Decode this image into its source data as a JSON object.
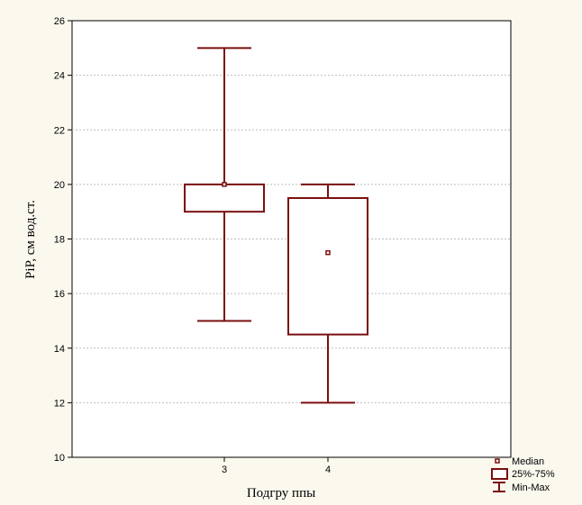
{
  "chart_data": {
    "type": "boxplot",
    "xlabel": "Подгру ппы",
    "ylabel": "PiP, см вод.ст.",
    "ylim": [
      10,
      26
    ],
    "yticks": [
      10,
      12,
      14,
      16,
      18,
      20,
      22,
      24,
      26
    ],
    "categories": [
      "3",
      "4"
    ],
    "boxes": [
      {
        "category": "3",
        "min": 15,
        "q1": 19,
        "median": 20,
        "q3": 20,
        "max": 25
      },
      {
        "category": "4",
        "min": 12,
        "q1": 14.5,
        "median": 17.5,
        "q3": 19.5,
        "max": 20
      }
    ],
    "grid": true,
    "legend_position": "bottom-right",
    "legend": [
      {
        "symbol": "median-square",
        "label": "Median"
      },
      {
        "symbol": "box",
        "label": "25%-75%"
      },
      {
        "symbol": "whisker",
        "label": "Min-Max"
      }
    ],
    "colors": {
      "series": "#7a0f0f",
      "grid": "#bdbdbd",
      "background": "#fbf8ee",
      "plot_bg": "#ffffff"
    }
  }
}
